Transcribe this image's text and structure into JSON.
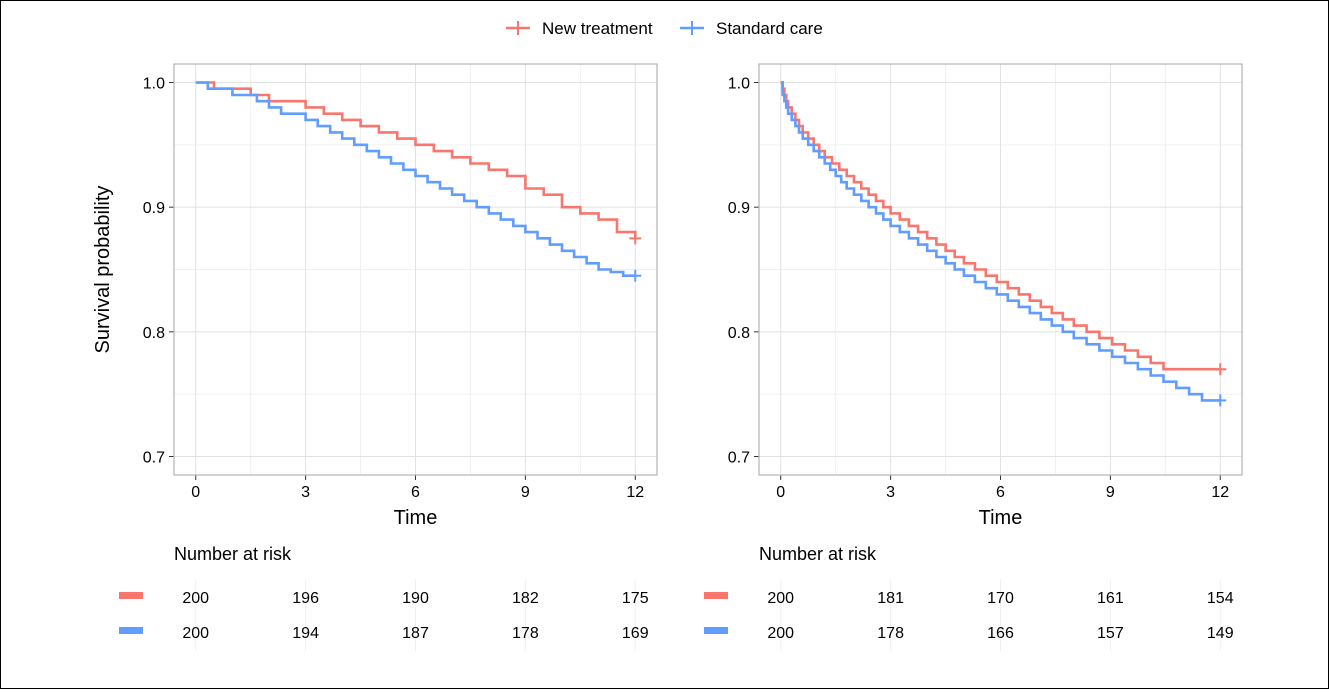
{
  "chart_data": [
    {
      "type": "line",
      "subtype": "kaplan-meier-step",
      "title": "",
      "xlabel": "Time",
      "ylabel": "Survival probability",
      "xlim": [
        0,
        12
      ],
      "ylim": [
        0.7,
        1.0
      ],
      "xticks": [
        "0",
        "3",
        "6",
        "9",
        "12"
      ],
      "yticks": [
        "0.7",
        "0.8",
        "0.9",
        "1.0"
      ],
      "grid": true,
      "legend": "top",
      "series": [
        {
          "name": "New treatment",
          "color": "#F8766D",
          "x": [
            0,
            0.5,
            1,
            1.5,
            2,
            2.5,
            3,
            3.5,
            4,
            4.5,
            5,
            5.5,
            6,
            6.5,
            7,
            7.5,
            8,
            8.5,
            9,
            9.5,
            10,
            10.5,
            11,
            11.5,
            12
          ],
          "y": [
            1.0,
            0.995,
            0.995,
            0.99,
            0.985,
            0.985,
            0.98,
            0.975,
            0.97,
            0.965,
            0.96,
            0.955,
            0.95,
            0.945,
            0.94,
            0.935,
            0.93,
            0.925,
            0.915,
            0.91,
            0.9,
            0.895,
            0.89,
            0.88,
            0.875
          ],
          "censor": [
            12,
            0.875
          ]
        },
        {
          "name": "Standard care",
          "color": "#619CFF",
          "x": [
            0,
            0.33,
            0.67,
            1,
            1.33,
            1.67,
            2,
            2.33,
            2.67,
            3,
            3.33,
            3.67,
            4,
            4.33,
            4.67,
            5,
            5.33,
            5.67,
            6,
            6.33,
            6.67,
            7,
            7.33,
            7.67,
            8,
            8.33,
            8.67,
            9,
            9.33,
            9.67,
            10,
            10.33,
            10.67,
            11,
            11.33,
            11.67,
            12
          ],
          "y": [
            1.0,
            0.995,
            0.995,
            0.99,
            0.99,
            0.985,
            0.98,
            0.975,
            0.975,
            0.97,
            0.965,
            0.96,
            0.955,
            0.95,
            0.945,
            0.94,
            0.935,
            0.93,
            0.925,
            0.92,
            0.915,
            0.91,
            0.905,
            0.9,
            0.895,
            0.89,
            0.885,
            0.88,
            0.875,
            0.87,
            0.865,
            0.86,
            0.855,
            0.85,
            0.848,
            0.845,
            0.845
          ],
          "censor": [
            12,
            0.845
          ]
        }
      ],
      "risk_table": {
        "title": "Number at risk",
        "times": [
          0,
          3,
          6,
          9,
          12
        ],
        "rows": [
          {
            "name": "New treatment",
            "color": "#F8766D",
            "values": [
              "200",
              "196",
              "190",
              "182",
              "175"
            ]
          },
          {
            "name": "Standard care",
            "color": "#619CFF",
            "values": [
              "200",
              "194",
              "187",
              "178",
              "169"
            ]
          }
        ]
      }
    },
    {
      "type": "line",
      "subtype": "kaplan-meier-step",
      "title": "",
      "xlabel": "Time",
      "ylabel": "",
      "xlim": [
        0,
        12
      ],
      "ylim": [
        0.7,
        1.0
      ],
      "xticks": [
        "0",
        "3",
        "6",
        "9",
        "12"
      ],
      "yticks": [
        "0.7",
        "0.8",
        "0.9",
        "1.0"
      ],
      "grid": true,
      "legend": "top",
      "series": [
        {
          "name": "New treatment",
          "color": "#F8766D",
          "x": [
            0,
            0.05,
            0.1,
            0.15,
            0.2,
            0.3,
            0.4,
            0.5,
            0.6,
            0.75,
            0.9,
            1.05,
            1.2,
            1.4,
            1.6,
            1.8,
            2,
            2.2,
            2.4,
            2.6,
            2.8,
            3,
            3.25,
            3.5,
            3.75,
            4,
            4.25,
            4.5,
            4.75,
            5,
            5.3,
            5.6,
            5.9,
            6.2,
            6.5,
            6.8,
            7.1,
            7.4,
            7.7,
            8,
            8.35,
            8.7,
            9.05,
            9.4,
            9.75,
            10.1,
            10.45,
            10.8,
            11.15,
            11.5,
            11.75,
            12
          ],
          "y": [
            1.0,
            0.995,
            0.99,
            0.985,
            0.98,
            0.975,
            0.97,
            0.965,
            0.96,
            0.955,
            0.95,
            0.945,
            0.94,
            0.935,
            0.93,
            0.925,
            0.92,
            0.915,
            0.91,
            0.905,
            0.9,
            0.895,
            0.89,
            0.885,
            0.88,
            0.875,
            0.87,
            0.865,
            0.86,
            0.855,
            0.85,
            0.845,
            0.84,
            0.835,
            0.83,
            0.825,
            0.82,
            0.815,
            0.81,
            0.805,
            0.8,
            0.795,
            0.79,
            0.785,
            0.78,
            0.775,
            0.77,
            0.77,
            0.77,
            0.77,
            0.77,
            0.77
          ],
          "censor": [
            12,
            0.77
          ]
        },
        {
          "name": "Standard care",
          "color": "#619CFF",
          "x": [
            0,
            0.05,
            0.1,
            0.15,
            0.2,
            0.3,
            0.4,
            0.5,
            0.6,
            0.75,
            0.9,
            1.05,
            1.2,
            1.35,
            1.5,
            1.65,
            1.8,
            2,
            2.2,
            2.4,
            2.6,
            2.8,
            3,
            3.25,
            3.5,
            3.75,
            4,
            4.25,
            4.5,
            4.75,
            5,
            5.3,
            5.6,
            5.9,
            6.2,
            6.5,
            6.8,
            7.1,
            7.4,
            7.7,
            8,
            8.35,
            8.7,
            9.05,
            9.4,
            9.75,
            10.1,
            10.45,
            10.8,
            11.15,
            11.5,
            11.75,
            12
          ],
          "y": [
            1.0,
            0.99,
            0.985,
            0.98,
            0.975,
            0.97,
            0.965,
            0.96,
            0.955,
            0.95,
            0.945,
            0.94,
            0.935,
            0.93,
            0.925,
            0.92,
            0.915,
            0.91,
            0.905,
            0.9,
            0.895,
            0.89,
            0.885,
            0.88,
            0.875,
            0.87,
            0.865,
            0.86,
            0.855,
            0.85,
            0.845,
            0.84,
            0.835,
            0.83,
            0.825,
            0.82,
            0.815,
            0.81,
            0.805,
            0.8,
            0.795,
            0.79,
            0.785,
            0.78,
            0.775,
            0.77,
            0.765,
            0.76,
            0.755,
            0.75,
            0.745,
            0.745,
            0.745
          ],
          "censor": [
            12,
            0.745
          ]
        }
      ],
      "risk_table": {
        "title": "Number at risk",
        "times": [
          0,
          3,
          6,
          9,
          12
        ],
        "rows": [
          {
            "name": "New treatment",
            "color": "#F8766D",
            "values": [
              "200",
              "181",
              "170",
              "161",
              "154"
            ]
          },
          {
            "name": "Standard care",
            "color": "#619CFF",
            "values": [
              "200",
              "178",
              "166",
              "157",
              "149"
            ]
          }
        ]
      }
    }
  ],
  "legend": {
    "items": [
      {
        "label": "New treatment",
        "color": "#F8766D"
      },
      {
        "label": "Standard care",
        "color": "#619CFF"
      }
    ]
  }
}
